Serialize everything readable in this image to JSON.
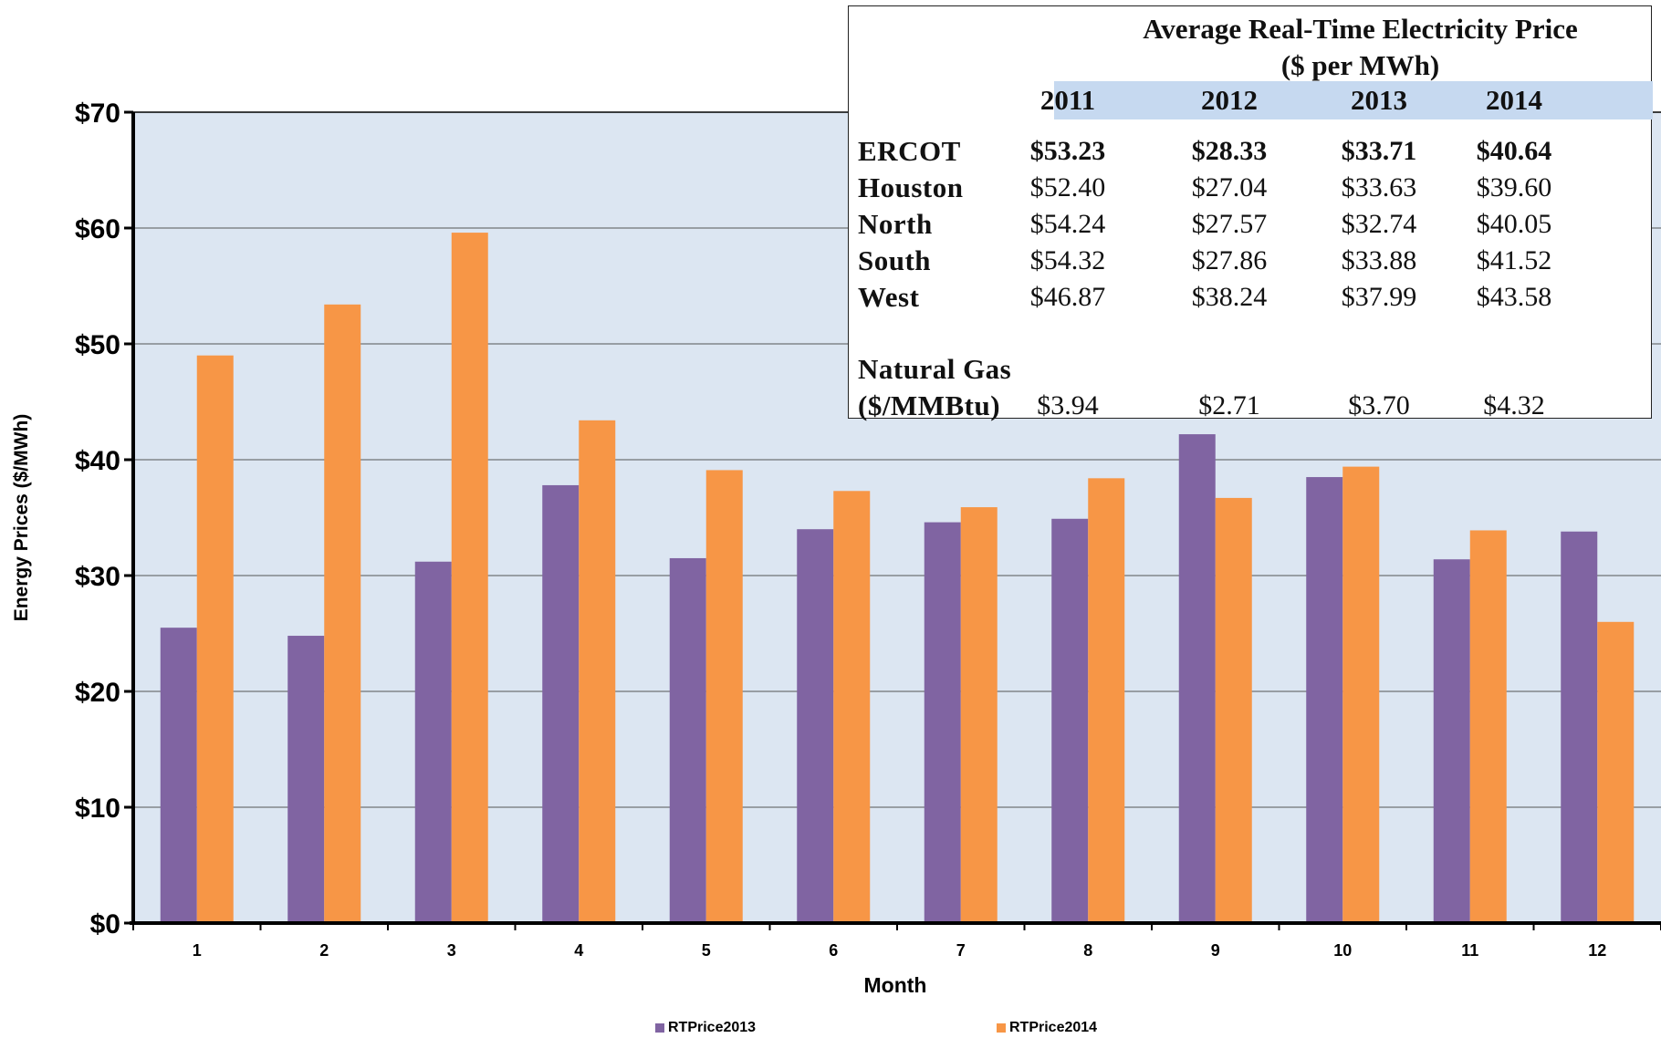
{
  "chart_data": {
    "type": "bar",
    "categories": [
      "1",
      "2",
      "3",
      "4",
      "5",
      "6",
      "7",
      "8",
      "9",
      "10",
      "11",
      "12"
    ],
    "series": [
      {
        "name": "RTPrice2013",
        "color": "#8064a2",
        "values": [
          25.5,
          24.8,
          31.2,
          37.8,
          31.5,
          34.0,
          34.6,
          34.9,
          42.2,
          38.5,
          31.4,
          33.8
        ]
      },
      {
        "name": "RTPrice2014",
        "color": "#f79646",
        "values": [
          49.0,
          53.4,
          59.6,
          43.4,
          39.1,
          37.3,
          35.9,
          38.4,
          36.7,
          39.4,
          33.9,
          26.0
        ]
      }
    ],
    "xlabel": "Month",
    "ylabel": "Energy Prices ($/MWh)",
    "ylim": [
      0,
      70
    ],
    "yticks": [
      0,
      10,
      20,
      30,
      40,
      50,
      60,
      70
    ],
    "ytick_labels": [
      "$0",
      "$10",
      "$20",
      "$30",
      "$40",
      "$50",
      "$60",
      "$70"
    ],
    "grid": true,
    "plot_background": "#dce6f2",
    "legend_position": "bottom"
  },
  "table": {
    "title_line1": "Average Real-Time Electricity Price",
    "title_line2": "($ per MWh)",
    "years": [
      "2011",
      "2012",
      "2013",
      "2014"
    ],
    "rows": [
      {
        "label": "ERCOT",
        "values": [
          "$53.23",
          "$28.33",
          "$33.71",
          "$40.64"
        ],
        "bold": true
      },
      {
        "label": "Houston",
        "values": [
          "$52.40",
          "$27.04",
          "$33.63",
          "$39.60"
        ],
        "bold": false
      },
      {
        "label": "North",
        "values": [
          "$54.24",
          "$27.57",
          "$32.74",
          "$40.05"
        ],
        "bold": false
      },
      {
        "label": "South",
        "values": [
          "$54.32",
          "$27.86",
          "$33.88",
          "$41.52"
        ],
        "bold": false
      },
      {
        "label": "West",
        "values": [
          "$46.87",
          "$38.24",
          "$37.99",
          "$43.58"
        ],
        "bold": false
      }
    ],
    "gas_label_line1": "Natural Gas",
    "gas_label_line2": "($/MMBtu)",
    "gas_values": [
      "$3.94",
      "$2.71",
      "$3.70",
      "$4.32"
    ],
    "header_color": "#c6d9f0"
  }
}
